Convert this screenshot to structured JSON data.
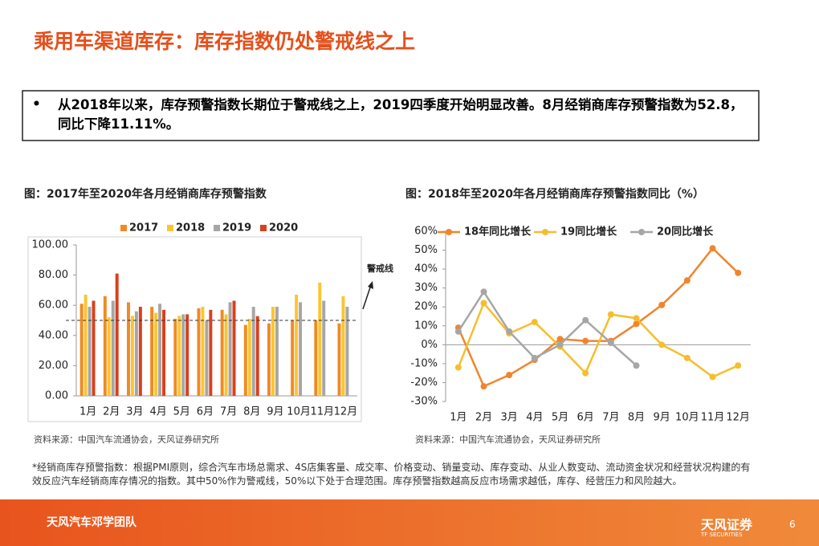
{
  "header": {
    "title": "乘用车渠道库存：库存指数仍处警戒线之上"
  },
  "bullet": "从2018年以来，库存预警指数长期位于警戒线之上，2019四季度开始明显改善。8月经销商库存预警指数为52.8，同比下降11.11%。",
  "chart_data": [
    {
      "type": "bar",
      "title": "图：2017年至2020年各月经销商库存预警指数",
      "source": "资料来源：中国汽车流通协会，天风证券研究所",
      "categories": [
        "1月",
        "2月",
        "3月",
        "4月",
        "5月",
        "6月",
        "7月",
        "8月",
        "9月",
        "10月",
        "11月",
        "12月"
      ],
      "series": [
        {
          "name": "2017",
          "color": "#f08a24",
          "values": [
            61,
            66,
            62,
            59,
            51,
            58,
            57,
            47,
            48,
            50,
            50,
            48
          ]
        },
        {
          "name": "2018",
          "color": "#fbc531",
          "values": [
            67,
            52,
            53,
            55,
            53,
            59,
            54,
            51,
            59,
            67,
            75,
            66
          ]
        },
        {
          "name": "2019",
          "color": "#a6a6a6",
          "values": [
            59,
            63,
            56,
            61,
            54,
            50,
            62,
            59,
            59,
            62,
            63,
            59
          ]
        },
        {
          "name": "2020",
          "color": "#d9401c",
          "values": [
            63,
            81,
            59,
            57,
            54,
            57,
            63,
            52.8,
            null,
            null,
            null,
            null
          ]
        }
      ],
      "ylim": [
        0,
        100
      ],
      "yticks": [
        {
          "value": 0,
          "label": "0.00"
        },
        {
          "value": 20,
          "label": "20.00"
        },
        {
          "value": 40,
          "label": "40.00"
        },
        {
          "value": 60,
          "label": "60.00"
        },
        {
          "value": 80,
          "label": "80.00"
        },
        {
          "value": 100,
          "label": "100.00"
        }
      ],
      "grid": false,
      "reference_line": {
        "value": 50,
        "label": "警戒线"
      }
    },
    {
      "type": "line",
      "title": "图：2018年至2020年各月经销商库存预警指数同比（%）",
      "source": "资料来源：中国汽车流通协会，天风证券研究所",
      "categories": [
        "1月",
        "2月",
        "3月",
        "4月",
        "5月",
        "6月",
        "7月",
        "8月",
        "9月",
        "10月",
        "11月",
        "12月"
      ],
      "series": [
        {
          "name": "18年同比增长",
          "color": "#f0852d",
          "values": [
            9,
            -22,
            -16,
            -8,
            3,
            2,
            2,
            11,
            21,
            34,
            51,
            38
          ]
        },
        {
          "name": "19同比增长",
          "color": "#f6be2e",
          "values": [
            -12,
            22,
            6,
            12,
            -1,
            -15,
            16,
            14,
            0,
            -7,
            -17,
            -11
          ]
        },
        {
          "name": "20同比增长",
          "color": "#a6a6a6",
          "values": [
            7,
            28,
            7,
            -7,
            0,
            13,
            1,
            -11,
            null,
            null,
            null,
            null
          ]
        }
      ],
      "ylim": [
        -30,
        60
      ],
      "yticks": [
        {
          "value": -30,
          "label": "-30%"
        },
        {
          "value": -20,
          "label": "-20%"
        },
        {
          "value": -10,
          "label": "-10%"
        },
        {
          "value": 0,
          "label": "0%"
        },
        {
          "value": 10,
          "label": "10%"
        },
        {
          "value": 20,
          "label": "20%"
        },
        {
          "value": 30,
          "label": "30%"
        },
        {
          "value": 40,
          "label": "40%"
        },
        {
          "value": 50,
          "label": "50%"
        },
        {
          "value": 60,
          "label": "60%"
        }
      ],
      "grid": false
    }
  ],
  "footnote": "*经销商库存预警指数：根据PMI原则，综合汽车市场总需求、4S店集客量、成交率、价格变动、销量变动、库存变动、从业人数变动、流动资金状况和经营状况构建的有效反应汽车经销商库存情况的指数。其中50%作为警戒线，50%以下处于合理范围。库存预警指数越高反应市场需求越低，库存、经营压力和风险越大。",
  "footer": {
    "team": "天风汽车邓学团队",
    "brand": "天风证券",
    "brand_en": "TF SECURITIES",
    "page": "6"
  }
}
